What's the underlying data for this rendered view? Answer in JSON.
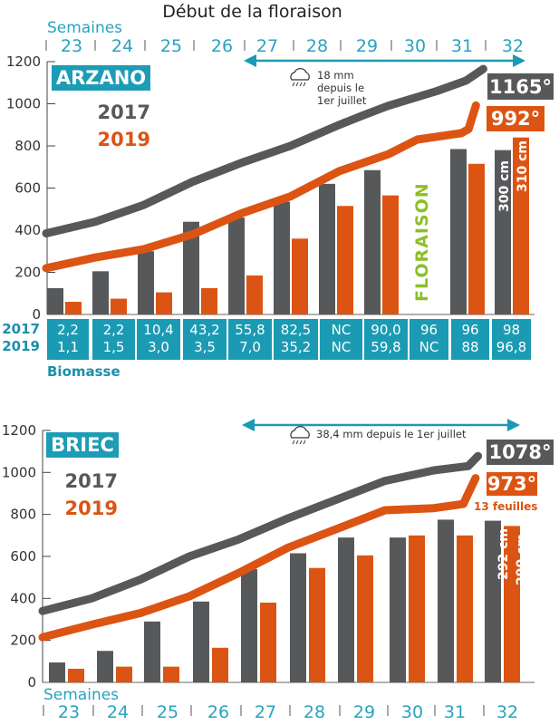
{
  "title": "Début de la floraison",
  "colors": {
    "y2017": "#57585a",
    "y2019": "#dc5413",
    "teal": "#1b9ab4",
    "week": "#29a3bf",
    "floraison": "#8dbf27"
  },
  "chart_data": [
    {
      "type": "bar+line",
      "title": "ARZANO",
      "xlabel": "Semaines",
      "weeks": [
        "23",
        "24",
        "25",
        "26",
        "27",
        "28",
        "29",
        "30",
        "31",
        "32"
      ],
      "ylim": [
        0,
        1200
      ],
      "yticks": [
        "0",
        "200",
        "400",
        "600",
        "800",
        "1000",
        "1200"
      ],
      "legend": [
        "2017",
        "2019"
      ],
      "bars": {
        "2017": [
          125,
          205,
          300,
          440,
          460,
          535,
          620,
          685,
          785,
          780
        ],
        "2019": [
          60,
          75,
          105,
          125,
          185,
          360,
          515,
          565,
          715,
          840
        ]
      },
      "bar_end_labels": [
        "300 cm",
        "310 cm"
      ],
      "lines": [
        {
          "name": "2017",
          "points": [
            [
              0,
              385
            ],
            [
              1,
              440
            ],
            [
              2,
              520
            ],
            [
              3,
              630
            ],
            [
              3.5,
              675
            ],
            [
              4,
              720
            ],
            [
              5,
              800
            ],
            [
              6,
              900
            ],
            [
              6.5,
              946
            ],
            [
              7,
              990
            ],
            [
              8,
              1060
            ],
            [
              8.6,
              1110
            ],
            [
              8.95,
              1165
            ]
          ]
        },
        {
          "name": "2019",
          "points": [
            [
              0,
              220
            ],
            [
              1,
              270
            ],
            [
              2,
              310
            ],
            [
              3,
              380
            ],
            [
              4,
              480
            ],
            [
              5,
              560
            ],
            [
              6,
              680
            ],
            [
              7,
              760
            ],
            [
              7.6,
              830
            ],
            [
              8.5,
              860
            ],
            [
              8.65,
              880
            ],
            [
              8.8,
              992
            ]
          ]
        }
      ],
      "end_values": [
        "1165°",
        "992°"
      ],
      "rain": [
        "18 mm",
        "depuis le",
        "1er juillet"
      ],
      "flowering_label": "FLORAISON",
      "biomass": {
        "label": "Biomasse",
        "rows": [
          "2017",
          "2019"
        ],
        "values_2017": [
          "2,2",
          "2,2",
          "10,4",
          "43,2",
          "55,8",
          "82,5",
          "NC",
          "90,0",
          "96",
          "96",
          "98"
        ],
        "values_2019": [
          "1,1",
          "1,5",
          "3,0",
          "3,5",
          "7,0",
          "35,2",
          "NC",
          "59,8",
          "NC",
          "88",
          "96,8"
        ]
      }
    },
    {
      "type": "bar+line",
      "title": "BRIEC",
      "xlabel": "Semaines",
      "weeks": [
        "23",
        "24",
        "25",
        "26",
        "27",
        "28",
        "29",
        "30",
        "31",
        "32"
      ],
      "ylim": [
        0,
        1200
      ],
      "yticks": [
        "0",
        "200",
        "400",
        "600",
        "800",
        "1000",
        "1200"
      ],
      "legend": [
        "2017",
        "2019"
      ],
      "bars": {
        "2017": [
          95,
          150,
          290,
          385,
          540,
          615,
          690,
          690,
          775,
          770
        ],
        "2019": [
          65,
          75,
          75,
          165,
          380,
          545,
          605,
          700,
          700,
          745
        ]
      },
      "bar_end_labels": [
        "292 cm",
        "290 cm"
      ],
      "lines": [
        {
          "name": "2017",
          "points": [
            [
              0,
              340
            ],
            [
              1,
              400
            ],
            [
              2,
              490
            ],
            [
              3,
              600
            ],
            [
              4,
              680
            ],
            [
              5,
              780
            ],
            [
              6,
              870
            ],
            [
              7,
              960
            ],
            [
              8,
              1010
            ],
            [
              8.7,
              1030
            ],
            [
              8.9,
              1078
            ]
          ]
        },
        {
          "name": "2019",
          "points": [
            [
              0,
              215
            ],
            [
              1,
              275
            ],
            [
              2,
              330
            ],
            [
              3,
              410
            ],
            [
              4,
              520
            ],
            [
              5,
              640
            ],
            [
              6,
              730
            ],
            [
              7,
              820
            ],
            [
              8,
              830
            ],
            [
              8.6,
              850
            ],
            [
              8.85,
              973
            ]
          ]
        }
      ],
      "end_values": [
        "1078°",
        "973°"
      ],
      "rain": [
        "38,4 mm depuis le 1er juillet"
      ],
      "leaf_note": "13 feuilles"
    }
  ]
}
